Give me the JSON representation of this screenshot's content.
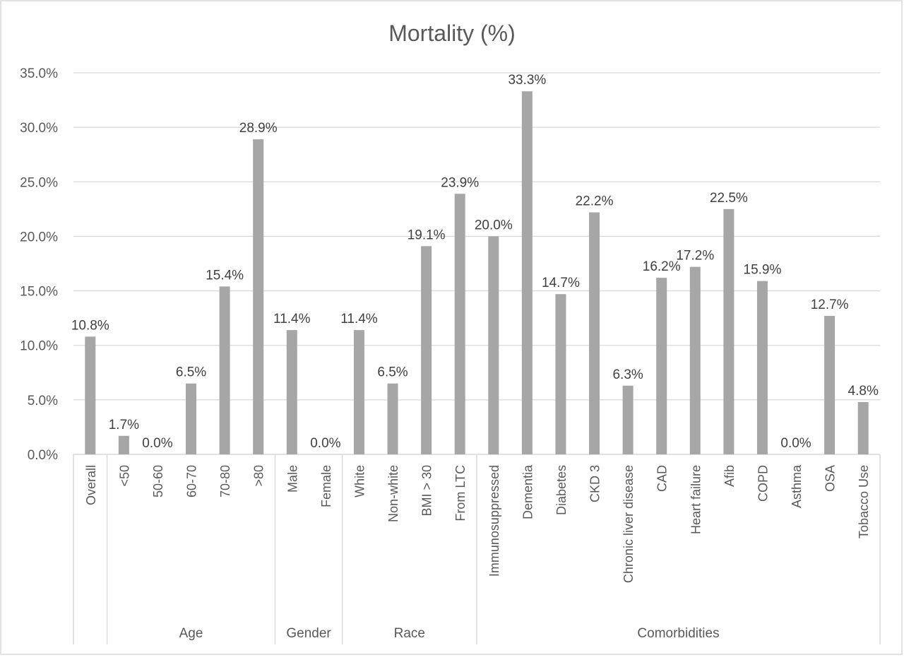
{
  "chart_data": {
    "type": "bar",
    "title": "Mortality (%)",
    "xlabel": "",
    "ylabel": "",
    "ylim": [
      0,
      35
    ],
    "y_ticks": [
      "0.0%",
      "5.0%",
      "10.0%",
      "15.0%",
      "20.0%",
      "25.0%",
      "30.0%",
      "35.0%"
    ],
    "grid": true,
    "bar_color": "#a6a6a6",
    "categories": [
      "Overall",
      "<50",
      "50-60",
      "60-70",
      "70-80",
      ">80",
      "Male",
      "Female",
      "White",
      "Non-white",
      "BMI > 30",
      "From LTC",
      "Immunosuppressed",
      "Dementia",
      "Diabetes",
      "CKD 3",
      "Chronic liver disease",
      "CAD",
      "Heart failure",
      "Afib",
      "COPD",
      "Asthma",
      "OSA",
      "Tobacco Use"
    ],
    "values": [
      10.8,
      1.7,
      0.0,
      6.5,
      15.4,
      28.9,
      11.4,
      0.0,
      11.4,
      6.5,
      19.1,
      23.9,
      20.0,
      33.3,
      14.7,
      22.2,
      6.3,
      16.2,
      17.2,
      22.5,
      15.9,
      0.0,
      12.7,
      4.8
    ],
    "data_labels": [
      "10.8%",
      "1.7%",
      "0.0%",
      "6.5%",
      "15.4%",
      "28.9%",
      "11.4%",
      "0.0%",
      "11.4%",
      "6.5%",
      "19.1%",
      "23.9%",
      "20.0%",
      "33.3%",
      "14.7%",
      "22.2%",
      "6.3%",
      "16.2%",
      "17.2%",
      "22.5%",
      "15.9%",
      "0.0%",
      "12.7%",
      "4.8%"
    ],
    "groups": [
      {
        "name": "",
        "start": 0,
        "end": 0
      },
      {
        "name": "Age",
        "start": 1,
        "end": 5
      },
      {
        "name": "Gender",
        "start": 6,
        "end": 7
      },
      {
        "name": "Race",
        "start": 8,
        "end": 11
      },
      {
        "name": "Comorbidities",
        "start": 12,
        "end": 23
      }
    ]
  }
}
